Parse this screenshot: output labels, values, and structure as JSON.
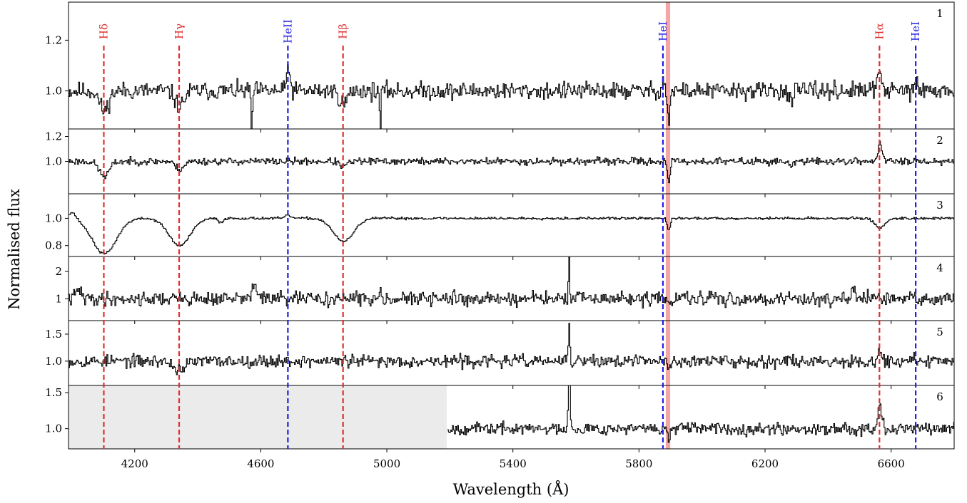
{
  "chart_data": {
    "type": "line",
    "xlabel": "Wavelength (Å)",
    "ylabel": "Normalised flux",
    "xlim": [
      3990,
      6800
    ],
    "xticks": [
      4200,
      4600,
      5000,
      5400,
      5800,
      6200,
      6600
    ],
    "highlight_band": {
      "x": [
        5885,
        5899
      ],
      "color": "#f4a6a6"
    },
    "colors": {
      "hydrogen": "#e03030",
      "helium": "#2020e0",
      "spectrum": "#000000",
      "nodata": "#ebebeb"
    },
    "lines": [
      {
        "label": "Hδ",
        "x": 4102,
        "element": "hydrogen"
      },
      {
        "label": "Hγ",
        "x": 4341,
        "element": "hydrogen"
      },
      {
        "label": "HeII",
        "x": 4686,
        "element": "helium"
      },
      {
        "label": "Hβ",
        "x": 4861,
        "element": "hydrogen"
      },
      {
        "label": "HeI",
        "x": 5876,
        "element": "helium"
      },
      {
        "label": "Hα",
        "x": 6563,
        "element": "hydrogen"
      },
      {
        "label": "HeI",
        "x": 6678,
        "element": "helium"
      }
    ],
    "panels": [
      {
        "number": "1",
        "ylim": [
          0.85,
          1.35
        ],
        "yticks": [
          1.0,
          1.2
        ],
        "ytick_labels": [
          "1.0",
          "1.2"
        ],
        "noise": 0.03,
        "seed": 11,
        "nodata_x": null,
        "features": [
          {
            "x": 4102,
            "depth": -0.08,
            "width": 14
          },
          {
            "x": 4341,
            "depth": -0.06,
            "width": 14
          },
          {
            "x": 4686,
            "depth": 0.1,
            "width": 5
          },
          {
            "x": 4861,
            "depth": -0.05,
            "width": 12
          },
          {
            "x": 4570,
            "depth": -0.18,
            "width": 2
          },
          {
            "x": 4978,
            "depth": -0.16,
            "width": 2
          },
          {
            "x": 5876,
            "depth": 0.04,
            "width": 5
          },
          {
            "x": 5893,
            "depth": -0.12,
            "width": 4
          },
          {
            "x": 6282,
            "depth": -0.05,
            "width": 5
          },
          {
            "x": 6563,
            "depth": 0.08,
            "width": 7
          },
          {
            "x": 6678,
            "depth": 0.03,
            "width": 5
          }
        ]
      },
      {
        "number": "2",
        "ylim": [
          0.74,
          1.26
        ],
        "yticks": [
          1.0,
          1.2
        ],
        "ytick_labels": [
          "1.0",
          "1.2"
        ],
        "noise": 0.025,
        "seed": 23,
        "nodata_x": null,
        "features": [
          {
            "x": 4102,
            "depth": -0.12,
            "width": 16
          },
          {
            "x": 4341,
            "depth": -0.06,
            "width": 14
          },
          {
            "x": 4861,
            "depth": -0.04,
            "width": 12
          },
          {
            "x": 5893,
            "depth": -0.18,
            "width": 4
          },
          {
            "x": 6282,
            "depth": -0.05,
            "width": 6
          },
          {
            "x": 6563,
            "depth": 0.14,
            "width": 7
          },
          {
            "x": 6678,
            "depth": 0.03,
            "width": 5
          }
        ]
      },
      {
        "number": "3",
        "ylim": [
          0.72,
          1.18
        ],
        "yticks": [
          0.8,
          1.0
        ],
        "ytick_labels": [
          "0.8",
          "1.0"
        ],
        "noise": 0.008,
        "seed": 37,
        "nodata_x": null,
        "features": [
          {
            "x": 4000,
            "depth": 0.05,
            "width": 12
          },
          {
            "x": 4102,
            "depth": -0.26,
            "width": 38
          },
          {
            "x": 4341,
            "depth": -0.2,
            "width": 34
          },
          {
            "x": 4471,
            "depth": -0.03,
            "width": 8
          },
          {
            "x": 4686,
            "depth": 0.02,
            "width": 10
          },
          {
            "x": 4861,
            "depth": -0.17,
            "width": 32
          },
          {
            "x": 5893,
            "depth": -0.09,
            "width": 5
          },
          {
            "x": 6563,
            "depth": -0.07,
            "width": 16
          }
        ]
      },
      {
        "number": "4",
        "ylim": [
          0.2,
          2.55
        ],
        "yticks": [
          1.0,
          2.0
        ],
        "ytick_labels": [
          "1",
          "2"
        ],
        "noise": 0.22,
        "seed": 41,
        "nodata_x": null,
        "features": [
          {
            "x": 4020,
            "depth": 0.35,
            "width": 8
          },
          {
            "x": 4580,
            "depth": 0.45,
            "width": 10
          },
          {
            "x": 4980,
            "depth": 0.3,
            "width": 6
          },
          {
            "x": 5577,
            "depth": 1.45,
            "width": 2
          },
          {
            "x": 5893,
            "depth": -0.3,
            "width": 3
          },
          {
            "x": 6480,
            "depth": 0.25,
            "width": 6
          }
        ]
      },
      {
        "number": "5",
        "ylim": [
          0.55,
          1.75
        ],
        "yticks": [
          1.0,
          1.5
        ],
        "ytick_labels": [
          "1.0",
          "1.5"
        ],
        "noise": 0.1,
        "seed": 53,
        "nodata_x": null,
        "features": [
          {
            "x": 4340,
            "depth": -0.15,
            "width": 20
          },
          {
            "x": 5577,
            "depth": 0.75,
            "width": 2
          },
          {
            "x": 5893,
            "depth": -0.15,
            "width": 4
          },
          {
            "x": 6563,
            "depth": 0.15,
            "width": 7
          }
        ]
      },
      {
        "number": "6",
        "ylim": [
          0.72,
          1.6
        ],
        "yticks": [
          1.0,
          1.5
        ],
        "ytick_labels": [
          "1.0",
          "1.5"
        ],
        "noise": 0.07,
        "seed": 67,
        "nodata_x": [
          3990,
          5190
        ],
        "features": [
          {
            "x": 5577,
            "depth": 0.8,
            "width": 3
          },
          {
            "x": 5893,
            "depth": -0.15,
            "width": 4
          },
          {
            "x": 6563,
            "depth": 0.32,
            "width": 7
          },
          {
            "x": 6678,
            "depth": 0.05,
            "width": 5
          }
        ]
      }
    ]
  }
}
